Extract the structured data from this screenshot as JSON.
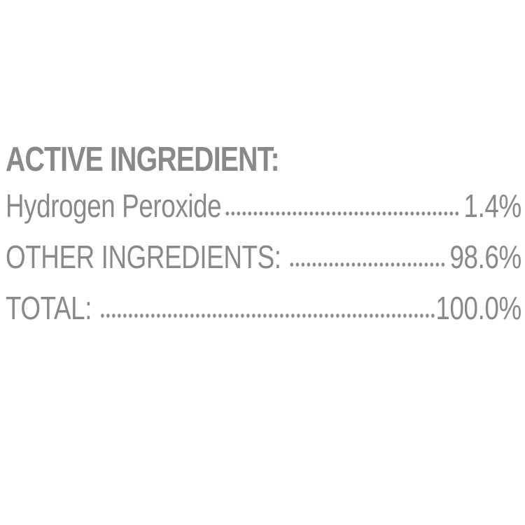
{
  "heading": "ACTIVE INGREDIENT:",
  "rows": [
    {
      "label": "Hydrogen Peroxide",
      "value": "1.4%"
    },
    {
      "label": "OTHER INGREDIENTS:",
      "value": "98.6%"
    },
    {
      "label": "TOTAL:",
      "value": "100.0%"
    }
  ],
  "colors": {
    "text": "#8a8889",
    "background": "#ffffff"
  }
}
